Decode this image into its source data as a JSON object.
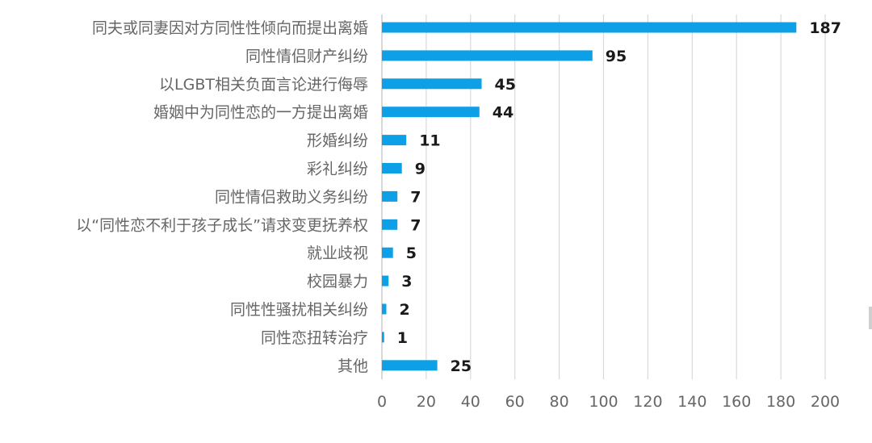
{
  "chart_data": {
    "type": "bar",
    "orientation": "horizontal",
    "categories": [
      "同夫或同妻因对方同性性倾向而提出离婚",
      "同性情侣财产纠纷",
      "以LGBT相关负面言论进行侮辱",
      "婚姻中为同性恋的一方提出离婚",
      "形婚纠纷",
      "彩礼纠纷",
      "同性情侣救助义务纠纷",
      "以“同性恋不利于孩子成长”请求变更抚养权",
      "就业歧视",
      "校园暴力",
      "同性性骚扰相关纠纷",
      "同性恋扭转治疗",
      "其他"
    ],
    "values": [
      187,
      95,
      45,
      44,
      11,
      9,
      7,
      7,
      5,
      3,
      2,
      1,
      25
    ],
    "xlim": [
      0,
      200
    ],
    "xticks": [
      "0",
      "20",
      "40",
      "60",
      "80",
      "100",
      "120",
      "140",
      "160",
      "180",
      "200"
    ],
    "grid": "vertical",
    "data_labels": true,
    "bar_color": "#0ea0e6",
    "title": "",
    "xlabel": "",
    "ylabel": ""
  }
}
